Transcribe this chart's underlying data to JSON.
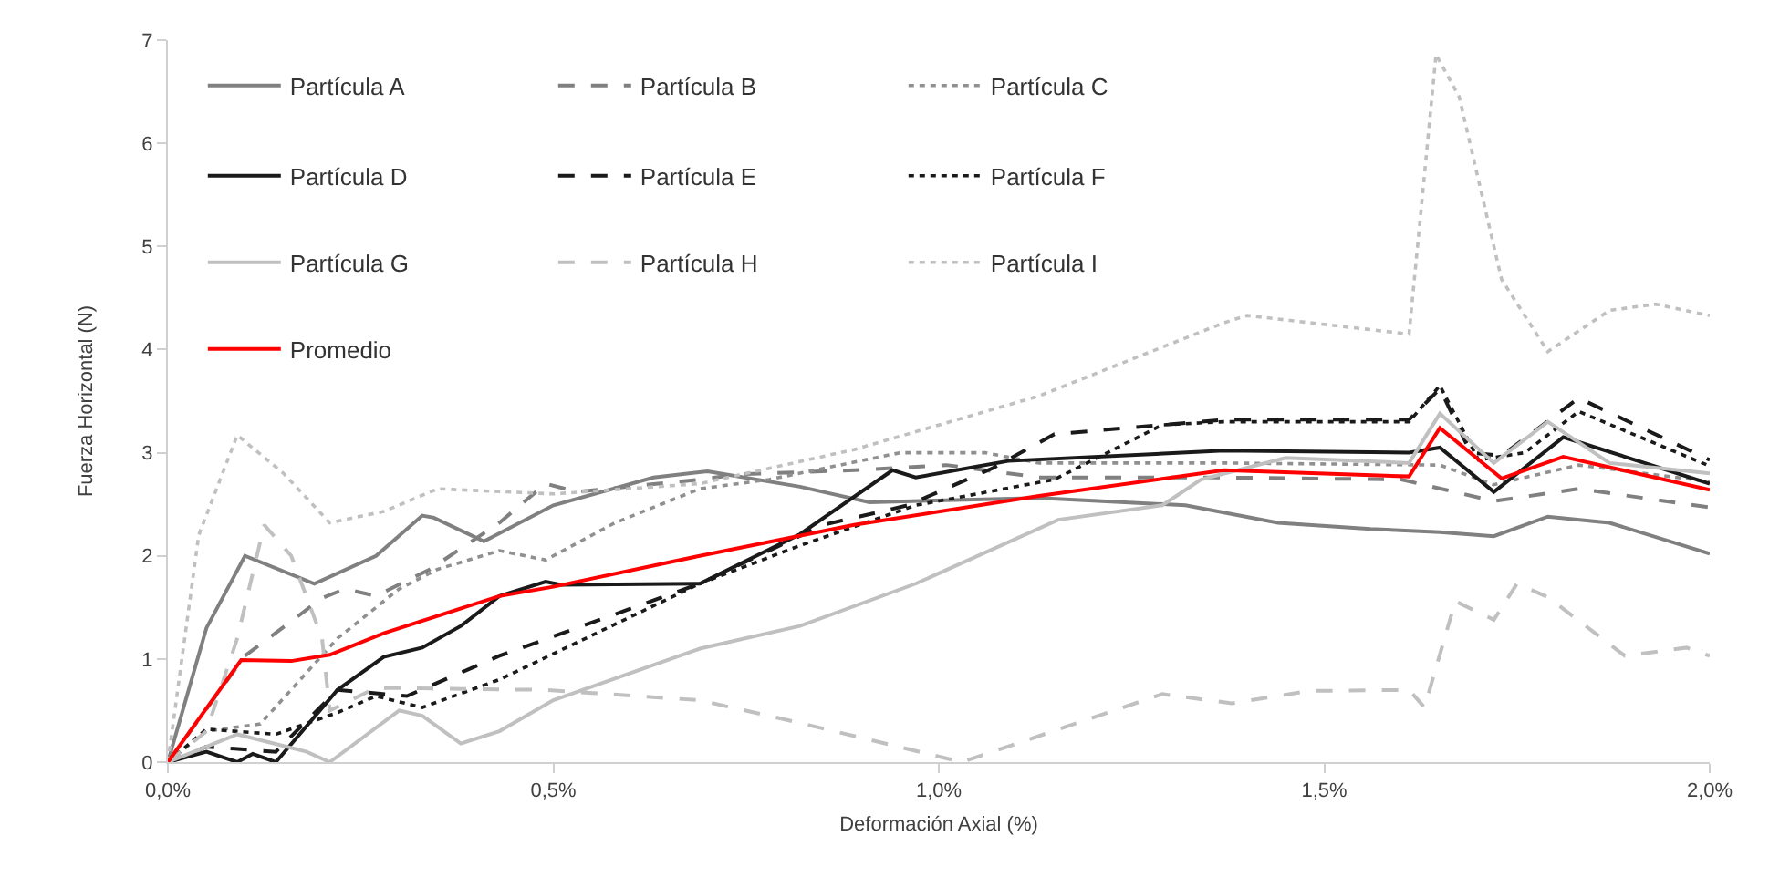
{
  "chart_data": {
    "type": "line",
    "xlabel": "Deformación Axial (%)",
    "ylabel": "Fuerza Horizontal (N)",
    "xlim": [
      0,
      2
    ],
    "xticks": [
      {
        "value": 0,
        "label": "0,0%"
      },
      {
        "value": 0.5,
        "label": "0,5%"
      },
      {
        "value": 1,
        "label": "1,0%"
      },
      {
        "value": 1.5,
        "label": "1,5%"
      },
      {
        "value": 2,
        "label": "2,0%"
      }
    ],
    "ylim": [
      0,
      7
    ],
    "yticks": [
      0,
      1,
      2,
      3,
      4,
      5,
      6,
      7
    ],
    "grid": false,
    "legend": "top left",
    "marker": "none",
    "series": [
      {
        "name": "Partícula A",
        "color": "#808080",
        "line_style": "solid",
        "x": [
          0,
          0.05,
          0.1,
          0.19,
          0.27,
          0.33,
          0.345,
          0.41,
          0.5,
          0.63,
          0.7,
          0.82,
          0.91,
          1.13,
          1.32,
          1.44,
          1.56,
          1.65,
          1.72,
          1.79,
          1.87,
          2.0
        ],
        "values": [
          0,
          1.3,
          2.0,
          1.73,
          2.0,
          2.39,
          2.37,
          2.14,
          2.49,
          2.76,
          2.82,
          2.67,
          2.52,
          2.56,
          2.49,
          2.32,
          2.26,
          2.23,
          2.19,
          2.38,
          2.32,
          2.02
        ]
      },
      {
        "name": "Partícula B",
        "color": "#808080",
        "line_style": "dashed",
        "x": [
          0,
          0.1,
          0.2,
          0.23,
          0.27,
          0.34,
          0.43,
          0.49,
          0.53,
          0.69,
          0.74,
          0.89,
          1.01,
          1.13,
          1.37,
          1.6,
          1.72,
          1.83,
          2.0
        ],
        "values": [
          0,
          1.03,
          1.59,
          1.68,
          1.61,
          1.87,
          2.32,
          2.7,
          2.62,
          2.74,
          2.79,
          2.83,
          2.88,
          2.76,
          2.76,
          2.74,
          2.53,
          2.65,
          2.47
        ]
      },
      {
        "name": "Partícula C",
        "color": "#909090",
        "line_style": "dotted",
        "x": [
          0,
          0.05,
          0.12,
          0.22,
          0.3,
          0.35,
          0.43,
          0.49,
          0.58,
          0.69,
          0.78,
          0.95,
          1.06,
          1.13,
          1.37,
          1.65,
          1.72,
          1.83,
          2.0
        ],
        "values": [
          0,
          0.3,
          0.37,
          1.2,
          1.68,
          1.87,
          2.05,
          1.96,
          2.32,
          2.65,
          2.74,
          3.0,
          3.0,
          2.9,
          2.9,
          2.88,
          2.69,
          2.88,
          2.72
        ]
      },
      {
        "name": "Partícula D",
        "color": "#1a1a1a",
        "line_style": "solid",
        "x": [
          0,
          0.05,
          0.09,
          0.11,
          0.14,
          0.22,
          0.28,
          0.33,
          0.38,
          0.43,
          0.49,
          0.51,
          0.69,
          0.82,
          0.94,
          0.97,
          1.09,
          1.37,
          1.61,
          1.65,
          1.72,
          1.81,
          2.0
        ],
        "values": [
          0,
          0.1,
          0,
          0.08,
          0,
          0.7,
          1.02,
          1.11,
          1.32,
          1.61,
          1.75,
          1.72,
          1.73,
          2.21,
          2.83,
          2.76,
          2.92,
          3.02,
          3.0,
          3.05,
          2.62,
          3.15,
          2.7
        ]
      },
      {
        "name": "Partícula E",
        "color": "#1a1a1a",
        "line_style": "dashed",
        "x": [
          0,
          0.05,
          0.14,
          0.22,
          0.31,
          0.43,
          0.69,
          0.85,
          0.96,
          1.07,
          1.15,
          1.37,
          1.61,
          1.65,
          1.69,
          1.73,
          1.83,
          2.0
        ],
        "values": [
          0,
          0.15,
          0.1,
          0.7,
          0.64,
          1.03,
          1.73,
          2.3,
          2.49,
          2.85,
          3.18,
          3.32,
          3.32,
          3.62,
          3.0,
          2.97,
          3.53,
          2.93
        ]
      },
      {
        "name": "Partícula F",
        "color": "#1a1a1a",
        "line_style": "dotted",
        "x": [
          0,
          0.05,
          0.14,
          0.22,
          0.27,
          0.33,
          0.43,
          0.69,
          0.82,
          0.97,
          1.15,
          1.29,
          1.37,
          1.61,
          1.65,
          1.7,
          1.76,
          1.83,
          2.0
        ],
        "values": [
          0,
          0.32,
          0.27,
          0.48,
          0.64,
          0.53,
          0.8,
          1.73,
          2.1,
          2.49,
          2.74,
          3.27,
          3.3,
          3.3,
          3.65,
          2.93,
          3.0,
          3.4,
          2.87
        ]
      },
      {
        "name": "Partícula G",
        "color": "#c0c0c0",
        "line_style": "solid",
        "x": [
          0,
          0.09,
          0.18,
          0.21,
          0.3,
          0.33,
          0.38,
          0.43,
          0.5,
          0.69,
          0.82,
          0.97,
          1.155,
          1.29,
          1.34,
          1.45,
          1.61,
          1.65,
          1.72,
          1.79,
          1.87,
          2.0
        ],
        "values": [
          0,
          0.27,
          0.1,
          0,
          0.5,
          0.45,
          0.18,
          0.3,
          0.6,
          1.1,
          1.32,
          1.73,
          2.35,
          2.49,
          2.74,
          2.95,
          2.9,
          3.38,
          2.9,
          3.3,
          2.9,
          2.8
        ]
      },
      {
        "name": "Partícula H",
        "color": "#c0c0c0",
        "line_style": "dashed",
        "x": [
          0,
          0.05,
          0.09,
          0.125,
          0.16,
          0.2,
          0.21,
          0.27,
          0.49,
          0.69,
          0.82,
          1.03,
          1.29,
          1.38,
          1.48,
          1.61,
          1.63,
          1.67,
          1.72,
          1.75,
          1.79,
          1.89,
          1.97,
          2.0
        ],
        "values": [
          0,
          0.3,
          1.2,
          2.3,
          2.0,
          1.2,
          0.5,
          0.72,
          0.7,
          0.6,
          0.38,
          0,
          0.66,
          0.57,
          0.69,
          0.7,
          0.53,
          1.56,
          1.38,
          1.73,
          1.6,
          1.03,
          1.11,
          1.03
        ]
      },
      {
        "name": "Partícula I",
        "color": "#c0c0c0",
        "line_style": "dotted",
        "x": [
          0,
          0.04,
          0.09,
          0.15,
          0.21,
          0.28,
          0.35,
          0.5,
          0.69,
          0.89,
          1.13,
          1.37,
          1.4,
          1.61,
          1.645,
          1.675,
          1.73,
          1.79,
          1.87,
          1.93,
          2.0
        ],
        "values": [
          0,
          2.2,
          3.17,
          2.8,
          2.32,
          2.43,
          2.65,
          2.6,
          2.7,
          3.03,
          3.55,
          4.26,
          4.33,
          4.15,
          6.86,
          6.45,
          4.68,
          3.98,
          4.38,
          4.44,
          4.33
        ]
      },
      {
        "name": "Promedio",
        "color": "#ff0000",
        "line_style": "solid",
        "x": [
          0,
          0.095,
          0.16,
          0.21,
          0.28,
          0.43,
          0.5,
          0.69,
          0.89,
          1.13,
          1.37,
          1.61,
          1.65,
          1.73,
          1.81,
          2.0
        ],
        "values": [
          0,
          0.99,
          0.98,
          1.04,
          1.25,
          1.61,
          1.7,
          2.0,
          2.3,
          2.58,
          2.83,
          2.77,
          3.24,
          2.75,
          2.96,
          2.64
        ]
      }
    ]
  }
}
